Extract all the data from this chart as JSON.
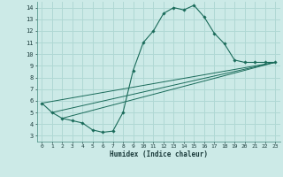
{
  "xlabel": "Humidex (Indice chaleur)",
  "bg_color": "#cceae7",
  "grid_color": "#b0d8d4",
  "line_color": "#1a6b5a",
  "xlim": [
    -0.5,
    23.5
  ],
  "ylim": [
    2.5,
    14.5
  ],
  "xticks": [
    0,
    1,
    2,
    3,
    4,
    5,
    6,
    7,
    8,
    9,
    10,
    11,
    12,
    13,
    14,
    15,
    16,
    17,
    18,
    19,
    20,
    21,
    22,
    23
  ],
  "yticks": [
    3,
    4,
    5,
    6,
    7,
    8,
    9,
    10,
    11,
    12,
    13,
    14
  ],
  "main_series": [
    [
      0,
      5.8
    ],
    [
      1,
      5.0
    ],
    [
      2,
      4.5
    ],
    [
      3,
      4.3
    ],
    [
      4,
      4.1
    ],
    [
      5,
      3.5
    ],
    [
      6,
      3.3
    ],
    [
      7,
      3.4
    ],
    [
      8,
      5.0
    ],
    [
      9,
      8.6
    ],
    [
      10,
      11.0
    ],
    [
      11,
      12.0
    ],
    [
      12,
      13.5
    ],
    [
      13,
      14.0
    ],
    [
      14,
      13.8
    ],
    [
      15,
      14.2
    ],
    [
      16,
      13.2
    ],
    [
      17,
      11.8
    ],
    [
      18,
      10.9
    ],
    [
      19,
      9.5
    ],
    [
      20,
      9.3
    ],
    [
      21,
      9.3
    ],
    [
      22,
      9.3
    ],
    [
      23,
      9.3
    ]
  ],
  "line1": [
    [
      0,
      5.8
    ],
    [
      23,
      9.3
    ]
  ],
  "line2": [
    [
      1,
      5.0
    ],
    [
      23,
      9.3
    ]
  ],
  "line3": [
    [
      2,
      4.5
    ],
    [
      23,
      9.3
    ]
  ]
}
